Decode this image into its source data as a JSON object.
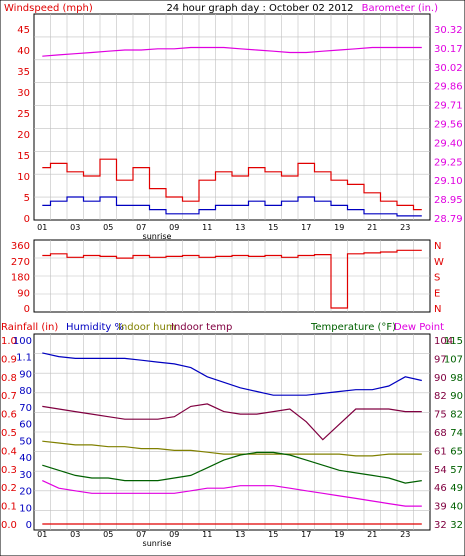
{
  "header": {
    "left_label": "Windspeed (mph)",
    "title": "24 hour graph day : October 02 2012",
    "right_label": "Barometer (in.)"
  },
  "colors": {
    "wind_gust": "#e00000",
    "wind_avg": "#0000c0",
    "barometer": "#e000e0",
    "direction": "#e00000",
    "humidity": "#0000c0",
    "indoor_hum": "#808000",
    "indoor_temp": "#800040",
    "temperature": "#006000",
    "dew_point": "#e000e0",
    "rainfall": "#e00000",
    "grid": "#c0c0c0",
    "background": "#ffffff"
  },
  "chart_data": [
    {
      "type": "line",
      "title": "24 hour graph day : October 02 2012",
      "x_ticks": [
        "01",
        "03",
        "05",
        "07",
        "09",
        "11",
        "13",
        "15",
        "17",
        "19",
        "21",
        "23"
      ],
      "x_annotation": "sunrise",
      "left_axis": {
        "label": "Windspeed (mph)",
        "ticks": [
          "45",
          "40",
          "35",
          "30",
          "25",
          "20",
          "15",
          "10",
          "5",
          "0"
        ],
        "ylim": [
          0,
          45
        ]
      },
      "right_axis": {
        "label": "Barometer (in.)",
        "ticks": [
          "30.32",
          "30.17",
          "30.02",
          "29.86",
          "29.71",
          "29.56",
          "29.40",
          "29.25",
          "29.10",
          "28.95",
          "28.79"
        ],
        "ylim": [
          28.79,
          30.32
        ]
      },
      "series": [
        {
          "key": "barometer",
          "axis": "right",
          "values": [
            30.1,
            30.11,
            30.12,
            30.13,
            30.14,
            30.15,
            30.15,
            30.16,
            30.16,
            30.17,
            30.17,
            30.17,
            30.16,
            30.15,
            30.14,
            30.13,
            30.13,
            30.14,
            30.15,
            30.16,
            30.17,
            30.17,
            30.17,
            30.17
          ]
        },
        {
          "key": "wind_gust",
          "axis": "left",
          "values": [
            12,
            13,
            11,
            10,
            14,
            9,
            12,
            7,
            5,
            4,
            9,
            11,
            10,
            12,
            11,
            10,
            13,
            11,
            9,
            8,
            6,
            4,
            3,
            2
          ]
        },
        {
          "key": "wind_avg",
          "axis": "left",
          "values": [
            3,
            4,
            5,
            4,
            5,
            3,
            3,
            2,
            1,
            1,
            2,
            3,
            3,
            4,
            3,
            4,
            5,
            4,
            3,
            2,
            1,
            1,
            0.5,
            0.5
          ]
        }
      ]
    },
    {
      "type": "line",
      "left_axis": {
        "ticks": [
          "360",
          "270",
          "180",
          "90",
          "0"
        ],
        "ylim": [
          0,
          360
        ]
      },
      "right_axis": {
        "ticks": [
          "N",
          "W",
          "S",
          "E",
          "N"
        ]
      },
      "series": [
        {
          "key": "direction",
          "values": [
            300,
            310,
            290,
            300,
            295,
            285,
            300,
            290,
            295,
            300,
            290,
            295,
            300,
            295,
            300,
            290,
            300,
            305,
            0,
            310,
            315,
            320,
            330,
            330
          ]
        }
      ]
    },
    {
      "type": "line",
      "labels": {
        "rainfall": "Rainfall (in)",
        "humidity": "Humidity %",
        "indoor_hum": "Indoor hum",
        "indoor_temp": "Indoor temp",
        "temperature": "Temperature (°F)",
        "dew_point": "Dew Point"
      },
      "axis_a": {
        "ticks": [
          "1.0",
          "0.9",
          "0.8",
          "0.7",
          "0.6",
          "0.5",
          "0.4",
          "0.3",
          "0.2",
          "0.1",
          "0.0"
        ],
        "ylim": [
          0,
          1
        ]
      },
      "axis_b": {
        "ticks": [
          "100",
          "1.1",
          "90",
          "80",
          "70",
          "60",
          "50",
          "40",
          "30",
          "20",
          "10",
          "0"
        ]
      },
      "axis_c": {
        "ticks": [
          "104",
          "97",
          "90",
          "82",
          "75",
          "68",
          "61",
          "54",
          "46",
          "39",
          "32"
        ],
        "ylim": [
          32,
          104
        ]
      },
      "axis_d": {
        "ticks": [
          "115",
          "107",
          "98",
          "90",
          "82",
          "74",
          "65",
          "57",
          "49",
          "40",
          "32"
        ]
      },
      "x_annotation": "sunrise",
      "series": [
        {
          "key": "humidity",
          "axis": "b",
          "values": [
            93,
            91,
            90,
            90,
            90,
            90,
            89,
            88,
            87,
            85,
            80,
            77,
            74,
            72,
            70,
            70,
            70,
            71,
            72,
            73,
            73,
            75,
            80,
            78
          ]
        },
        {
          "key": "indoor_temp",
          "axis": "c",
          "values": [
            78,
            77,
            76,
            75,
            74,
            73,
            73,
            73,
            74,
            78,
            79,
            76,
            75,
            75,
            76,
            77,
            72,
            65,
            71,
            77,
            77,
            77,
            76,
            76
          ]
        },
        {
          "key": "indoor_hum",
          "axis": "b",
          "values": [
            45,
            44,
            43,
            43,
            42,
            42,
            41,
            41,
            40,
            40,
            39,
            38,
            38,
            38,
            38,
            38,
            38,
            38,
            38,
            37,
            37,
            38,
            38,
            38
          ]
        },
        {
          "key": "temperature",
          "axis": "c",
          "values": [
            55,
            53,
            51,
            50,
            50,
            49,
            49,
            49,
            50,
            51,
            54,
            57,
            59,
            60,
            60,
            59,
            57,
            55,
            53,
            52,
            51,
            50,
            48,
            49
          ]
        },
        {
          "key": "dew_point",
          "axis": "c",
          "values": [
            49,
            46,
            45,
            44,
            44,
            44,
            44,
            44,
            44,
            45,
            46,
            46,
            47,
            47,
            47,
            46,
            45,
            44,
            43,
            42,
            41,
            40,
            39,
            39
          ]
        },
        {
          "key": "rainfall",
          "axis": "a",
          "values": [
            0,
            0,
            0,
            0,
            0,
            0,
            0,
            0,
            0,
            0,
            0,
            0,
            0,
            0,
            0,
            0,
            0,
            0,
            0,
            0,
            0,
            0,
            0,
            0
          ]
        }
      ]
    }
  ]
}
